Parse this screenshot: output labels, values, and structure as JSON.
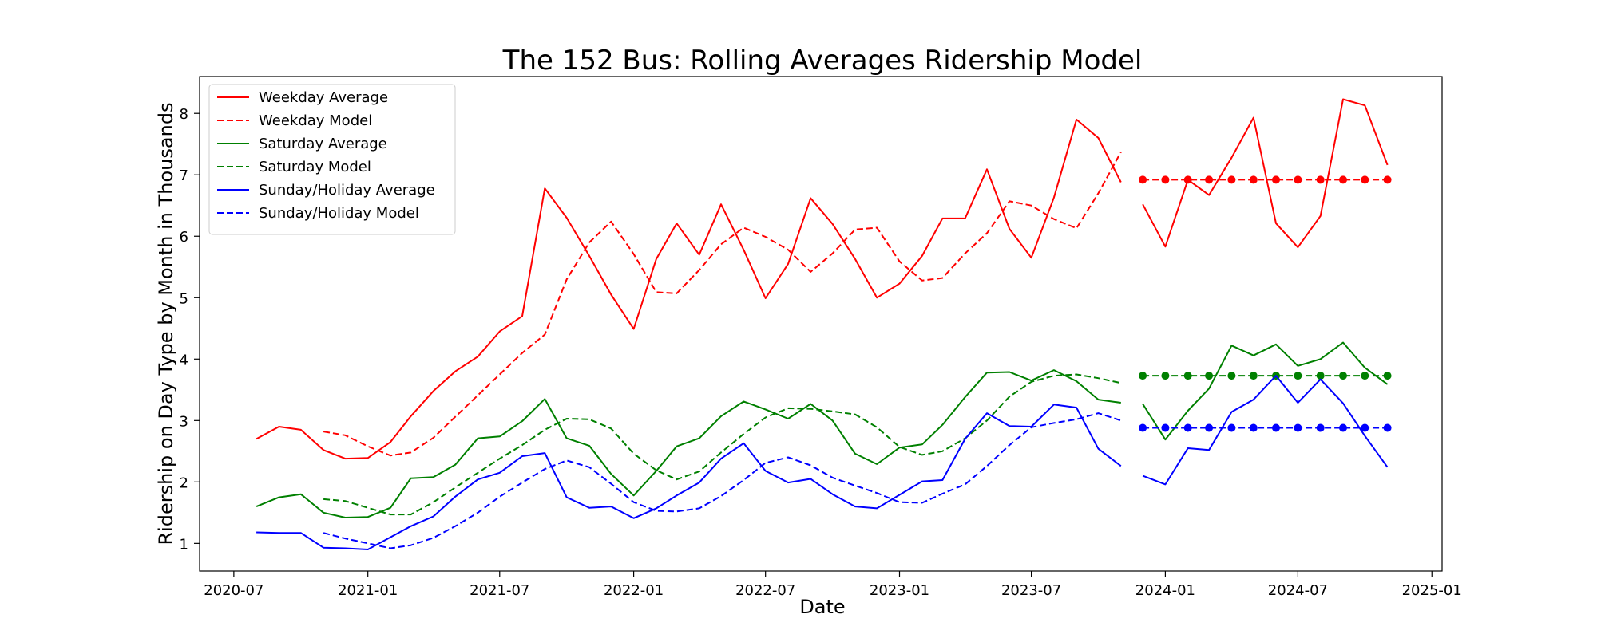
{
  "chart_data": {
    "type": "line",
    "title": "The 152 Bus: Rolling Averages Ridership Model",
    "xlabel": "Date",
    "ylabel": "Ridership on Day Type by Month in Thousands",
    "x_ticks": [
      "2020-07",
      "2021-01",
      "2021-07",
      "2022-01",
      "2022-07",
      "2023-01",
      "2023-07",
      "2024-01",
      "2024-07",
      "2025-01"
    ],
    "y_ticks": [
      "1",
      "2",
      "3",
      "4",
      "5",
      "6",
      "7",
      "8"
    ],
    "xlim": [
      "2020-05-15",
      "2025-01-15"
    ],
    "ylim": [
      0.55,
      8.6
    ],
    "legend_position": "upper left",
    "grid": false,
    "series": [
      {
        "name": "Weekday Average",
        "color": "#ff0000",
        "style": "solid",
        "marker": false,
        "x": [
          "2020-08",
          "2020-09",
          "2020-10",
          "2020-11",
          "2020-12",
          "2021-01",
          "2021-02",
          "2021-03",
          "2021-04",
          "2021-05",
          "2021-06",
          "2021-07",
          "2021-08",
          "2021-09",
          "2021-10",
          "2021-11",
          "2021-12",
          "2022-01",
          "2022-02",
          "2022-03",
          "2022-04",
          "2022-05",
          "2022-06",
          "2022-07",
          "2022-08",
          "2022-09",
          "2022-10",
          "2022-11",
          "2022-12",
          "2023-01",
          "2023-02",
          "2023-03",
          "2023-04",
          "2023-05",
          "2023-06",
          "2023-07",
          "2023-08",
          "2023-09",
          "2023-10",
          "2023-11"
        ],
        "y": [
          2.7,
          2.9,
          2.85,
          2.52,
          2.38,
          2.39,
          2.65,
          3.07,
          3.48,
          3.8,
          4.04,
          4.45,
          4.7,
          6.78,
          6.3,
          5.68,
          5.05,
          4.49,
          5.63,
          6.21,
          5.7,
          6.52,
          5.78,
          4.99,
          5.55,
          6.62,
          6.2,
          5.63,
          5.0,
          5.23,
          5.68,
          6.29,
          6.29,
          7.09,
          6.12,
          5.65,
          6.63,
          7.9,
          7.6,
          6.88
        ]
      },
      {
        "name": "Weekday Model",
        "color": "#ff0000",
        "style": "dashed",
        "marker": false,
        "x": [
          "2020-11",
          "2020-12",
          "2021-01",
          "2021-02",
          "2021-03",
          "2021-04",
          "2021-05",
          "2021-06",
          "2021-07",
          "2021-08",
          "2021-09",
          "2021-10",
          "2021-11",
          "2021-12",
          "2022-01",
          "2022-02",
          "2022-03",
          "2022-04",
          "2022-05",
          "2022-06",
          "2022-07",
          "2022-08",
          "2022-09",
          "2022-10",
          "2022-11",
          "2022-12",
          "2023-01",
          "2023-02",
          "2023-03",
          "2023-04",
          "2023-05",
          "2023-06",
          "2023-07",
          "2023-08",
          "2023-09",
          "2023-10",
          "2023-11"
        ],
        "y": [
          2.82,
          2.76,
          2.58,
          2.43,
          2.48,
          2.72,
          3.06,
          3.41,
          3.75,
          4.1,
          4.4,
          5.3,
          5.9,
          6.24,
          5.71,
          5.09,
          5.07,
          5.45,
          5.87,
          6.14,
          5.99,
          5.78,
          5.42,
          5.72,
          6.11,
          6.14,
          5.59,
          5.28,
          5.32,
          5.72,
          6.05,
          6.57,
          6.5,
          6.28,
          6.13,
          6.7,
          7.37
        ]
      },
      {
        "name": "Saturday Average",
        "color": "#008000",
        "style": "solid",
        "marker": false,
        "x": [
          "2020-08",
          "2020-09",
          "2020-10",
          "2020-11",
          "2020-12",
          "2021-01",
          "2021-02",
          "2021-03",
          "2021-04",
          "2021-05",
          "2021-06",
          "2021-07",
          "2021-08",
          "2021-09",
          "2021-10",
          "2021-11",
          "2021-12",
          "2022-01",
          "2022-02",
          "2022-03",
          "2022-04",
          "2022-05",
          "2022-06",
          "2022-07",
          "2022-08",
          "2022-09",
          "2022-10",
          "2022-11",
          "2022-12",
          "2023-01",
          "2023-02",
          "2023-03",
          "2023-04",
          "2023-05",
          "2023-06",
          "2023-07",
          "2023-08",
          "2023-09",
          "2023-10",
          "2023-11"
        ],
        "y": [
          1.6,
          1.75,
          1.8,
          1.5,
          1.42,
          1.43,
          1.58,
          2.06,
          2.08,
          2.28,
          2.71,
          2.74,
          2.99,
          3.35,
          2.71,
          2.59,
          2.13,
          1.78,
          2.18,
          2.58,
          2.71,
          3.07,
          3.31,
          3.18,
          3.03,
          3.27,
          3.0,
          2.46,
          2.29,
          2.56,
          2.61,
          2.93,
          3.38,
          3.78,
          3.79,
          3.65,
          3.82,
          3.64,
          3.34,
          3.29
        ]
      },
      {
        "name": "Saturday Model",
        "color": "#008000",
        "style": "dashed",
        "marker": false,
        "x": [
          "2020-11",
          "2020-12",
          "2021-01",
          "2021-02",
          "2021-03",
          "2021-04",
          "2021-05",
          "2021-06",
          "2021-07",
          "2021-08",
          "2021-09",
          "2021-10",
          "2021-11",
          "2021-12",
          "2022-01",
          "2022-02",
          "2022-03",
          "2022-04",
          "2022-05",
          "2022-06",
          "2022-07",
          "2022-08",
          "2022-09",
          "2022-10",
          "2022-11",
          "2022-12",
          "2023-01",
          "2023-02",
          "2023-03",
          "2023-04",
          "2023-05",
          "2023-06",
          "2023-07",
          "2023-08",
          "2023-09",
          "2023-10",
          "2023-11"
        ],
        "y": [
          1.72,
          1.69,
          1.58,
          1.47,
          1.47,
          1.67,
          1.91,
          2.15,
          2.38,
          2.6,
          2.85,
          3.03,
          3.02,
          2.87,
          2.46,
          2.19,
          2.04,
          2.17,
          2.48,
          2.78,
          3.05,
          3.2,
          3.19,
          3.15,
          3.1,
          2.89,
          2.57,
          2.44,
          2.5,
          2.71,
          3.0,
          3.39,
          3.63,
          3.73,
          3.75,
          3.69,
          3.61
        ]
      },
      {
        "name": "Sunday/Holiday Average",
        "color": "#0000ff",
        "style": "solid",
        "marker": false,
        "x": [
          "2020-08",
          "2020-09",
          "2020-10",
          "2020-11",
          "2020-12",
          "2021-01",
          "2021-02",
          "2021-03",
          "2021-04",
          "2021-05",
          "2021-06",
          "2021-07",
          "2021-08",
          "2021-09",
          "2021-10",
          "2021-11",
          "2021-12",
          "2022-01",
          "2022-02",
          "2022-03",
          "2022-04",
          "2022-05",
          "2022-06",
          "2022-07",
          "2022-08",
          "2022-09",
          "2022-10",
          "2022-11",
          "2022-12",
          "2023-01",
          "2023-02",
          "2023-03",
          "2023-04",
          "2023-05",
          "2023-06",
          "2023-07",
          "2023-08",
          "2023-09",
          "2023-10",
          "2023-11"
        ],
        "y": [
          1.18,
          1.17,
          1.17,
          0.93,
          0.92,
          0.9,
          1.1,
          1.28,
          1.44,
          1.76,
          2.04,
          2.15,
          2.42,
          2.47,
          1.75,
          1.58,
          1.6,
          1.41,
          1.57,
          1.78,
          1.99,
          2.38,
          2.63,
          2.18,
          1.99,
          2.05,
          1.8,
          1.6,
          1.57,
          1.79,
          2.01,
          2.03,
          2.7,
          3.12,
          2.91,
          2.9,
          3.26,
          3.21,
          2.54,
          2.26
        ]
      },
      {
        "name": "Sunday/Holiday Model",
        "color": "#0000ff",
        "style": "dashed",
        "marker": false,
        "x": [
          "2020-11",
          "2020-12",
          "2021-01",
          "2021-02",
          "2021-03",
          "2021-04",
          "2021-05",
          "2021-06",
          "2021-07",
          "2021-08",
          "2021-09",
          "2021-10",
          "2021-11",
          "2021-12",
          "2022-01",
          "2022-02",
          "2022-03",
          "2022-04",
          "2022-05",
          "2022-06",
          "2022-07",
          "2022-08",
          "2022-09",
          "2022-10",
          "2022-11",
          "2022-12",
          "2023-01",
          "2023-02",
          "2023-03",
          "2023-04",
          "2023-05",
          "2023-06",
          "2023-07",
          "2023-08",
          "2023-09",
          "2023-10",
          "2023-11"
        ],
        "y": [
          1.17,
          1.08,
          1.0,
          0.92,
          0.97,
          1.09,
          1.28,
          1.5,
          1.76,
          1.99,
          2.21,
          2.35,
          2.24,
          1.97,
          1.67,
          1.53,
          1.52,
          1.57,
          1.77,
          2.03,
          2.31,
          2.4,
          2.27,
          2.07,
          1.94,
          1.82,
          1.67,
          1.66,
          1.81,
          1.96,
          2.26,
          2.6,
          2.89,
          2.96,
          3.02,
          3.12,
          3.0
        ]
      },
      {
        "name": "",
        "color": "#ff0000",
        "style": "solid",
        "marker": false,
        "x": [
          "2023-12",
          "2024-01",
          "2024-02",
          "2024-03",
          "2024-04",
          "2024-05",
          "2024-06",
          "2024-07",
          "2024-08",
          "2024-09",
          "2024-10",
          "2024-11"
        ],
        "y": [
          6.52,
          5.83,
          6.92,
          6.67,
          7.28,
          7.93,
          6.21,
          5.82,
          6.33,
          8.23,
          8.13,
          7.16
        ]
      },
      {
        "name": "",
        "color": "#ff0000",
        "style": "dashed",
        "marker": true,
        "x": [
          "2023-12",
          "2024-01",
          "2024-02",
          "2024-03",
          "2024-04",
          "2024-05",
          "2024-06",
          "2024-07",
          "2024-08",
          "2024-09",
          "2024-10",
          "2024-11"
        ],
        "y": [
          6.92,
          6.92,
          6.92,
          6.92,
          6.92,
          6.92,
          6.92,
          6.92,
          6.92,
          6.92,
          6.92,
          6.92
        ]
      },
      {
        "name": "",
        "color": "#008000",
        "style": "solid",
        "marker": false,
        "x": [
          "2023-12",
          "2024-01",
          "2024-02",
          "2024-03",
          "2024-04",
          "2024-05",
          "2024-06",
          "2024-07",
          "2024-08",
          "2024-09",
          "2024-10",
          "2024-11"
        ],
        "y": [
          3.27,
          2.69,
          3.16,
          3.52,
          4.22,
          4.06,
          4.24,
          3.89,
          4.0,
          4.27,
          3.86,
          3.59
        ]
      },
      {
        "name": "",
        "color": "#008000",
        "style": "dashed",
        "marker": true,
        "x": [
          "2023-12",
          "2024-01",
          "2024-02",
          "2024-03",
          "2024-04",
          "2024-05",
          "2024-06",
          "2024-07",
          "2024-08",
          "2024-09",
          "2024-10",
          "2024-11"
        ],
        "y": [
          3.73,
          3.73,
          3.73,
          3.73,
          3.73,
          3.73,
          3.73,
          3.73,
          3.73,
          3.73,
          3.73,
          3.73
        ]
      },
      {
        "name": "",
        "color": "#0000ff",
        "style": "solid",
        "marker": false,
        "x": [
          "2023-12",
          "2024-01",
          "2024-02",
          "2024-03",
          "2024-04",
          "2024-05",
          "2024-06",
          "2024-07",
          "2024-08",
          "2024-09",
          "2024-10",
          "2024-11"
        ],
        "y": [
          2.1,
          1.96,
          2.55,
          2.52,
          3.14,
          3.34,
          3.73,
          3.29,
          3.67,
          3.28,
          2.75,
          2.24
        ]
      },
      {
        "name": "",
        "color": "#0000ff",
        "style": "dashed",
        "marker": true,
        "x": [
          "2023-12",
          "2024-01",
          "2024-02",
          "2024-03",
          "2024-04",
          "2024-05",
          "2024-06",
          "2024-07",
          "2024-08",
          "2024-09",
          "2024-10",
          "2024-11"
        ],
        "y": [
          2.88,
          2.88,
          2.88,
          2.88,
          2.88,
          2.88,
          2.88,
          2.88,
          2.88,
          2.88,
          2.88,
          2.88
        ]
      }
    ]
  }
}
